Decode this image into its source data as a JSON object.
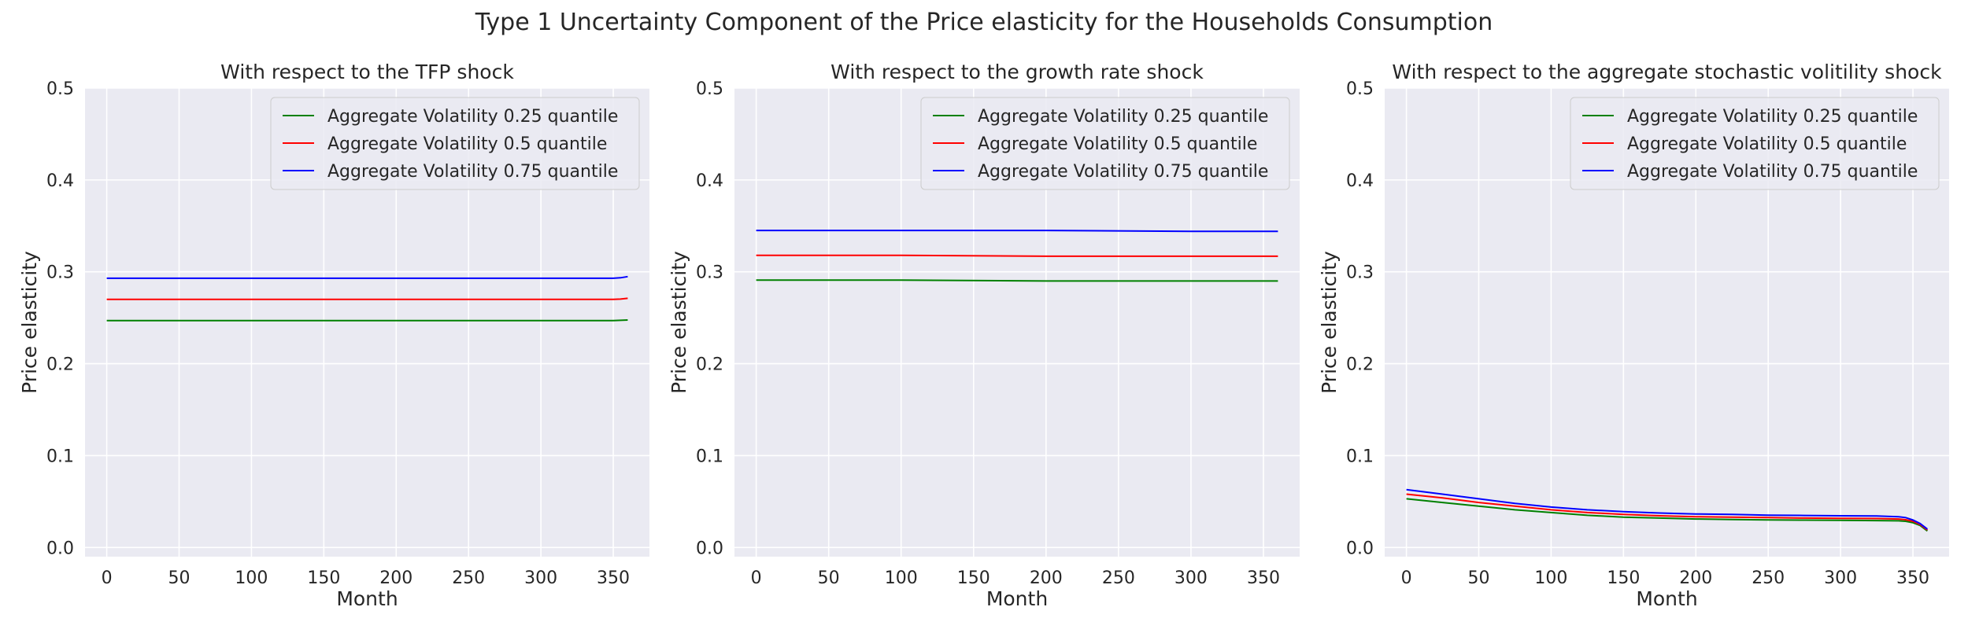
{
  "figure": {
    "title": "Type 1 Uncertainty Component of the Price elasticity for the Households Consumption"
  },
  "chart_data": [
    {
      "type": "line",
      "title": "With respect to the TFP shock",
      "xlabel": "Month",
      "ylabel": "Price elasticity",
      "xlim": [
        -15,
        375
      ],
      "ylim": [
        -0.01,
        0.5
      ],
      "xticks": [
        0,
        50,
        100,
        150,
        200,
        250,
        300,
        350
      ],
      "yticks": [
        0.0,
        0.1,
        0.2,
        0.3,
        0.4,
        0.5
      ],
      "grid": true,
      "legend_position": "upper right",
      "series": [
        {
          "name": "Aggregate Volatility 0.25 quantile",
          "color": "#008000",
          "x": [
            0,
            50,
            100,
            150,
            200,
            250,
            300,
            340,
            350,
            355,
            360
          ],
          "y": [
            0.247,
            0.247,
            0.247,
            0.247,
            0.247,
            0.247,
            0.247,
            0.247,
            0.247,
            0.2472,
            0.2476
          ]
        },
        {
          "name": "Aggregate Volatility 0.5 quantile",
          "color": "#ff0000",
          "x": [
            0,
            50,
            100,
            150,
            200,
            250,
            300,
            340,
            350,
            355,
            360
          ],
          "y": [
            0.27,
            0.27,
            0.27,
            0.27,
            0.27,
            0.27,
            0.27,
            0.27,
            0.27,
            0.2703,
            0.2712
          ]
        },
        {
          "name": "Aggregate Volatility 0.75 quantile",
          "color": "#0000ff",
          "x": [
            0,
            50,
            100,
            150,
            200,
            250,
            300,
            340,
            350,
            355,
            360
          ],
          "y": [
            0.293,
            0.293,
            0.293,
            0.293,
            0.293,
            0.293,
            0.293,
            0.293,
            0.293,
            0.2935,
            0.2948
          ]
        }
      ]
    },
    {
      "type": "line",
      "title": "With respect to the growth rate shock",
      "xlabel": "Month",
      "ylabel": "Price elasticity",
      "xlim": [
        -15,
        375
      ],
      "ylim": [
        -0.01,
        0.5
      ],
      "xticks": [
        0,
        50,
        100,
        150,
        200,
        250,
        300,
        350
      ],
      "yticks": [
        0.0,
        0.1,
        0.2,
        0.3,
        0.4,
        0.5
      ],
      "grid": true,
      "legend_position": "upper right",
      "series": [
        {
          "name": "Aggregate Volatility 0.25 quantile",
          "color": "#008000",
          "x": [
            0,
            100,
            200,
            300,
            360
          ],
          "y": [
            0.291,
            0.291,
            0.29,
            0.29,
            0.29
          ]
        },
        {
          "name": "Aggregate Volatility 0.5 quantile",
          "color": "#ff0000",
          "x": [
            0,
            100,
            200,
            300,
            360
          ],
          "y": [
            0.318,
            0.318,
            0.317,
            0.317,
            0.317
          ]
        },
        {
          "name": "Aggregate Volatility 0.75 quantile",
          "color": "#0000ff",
          "x": [
            0,
            100,
            200,
            300,
            360
          ],
          "y": [
            0.345,
            0.345,
            0.345,
            0.344,
            0.344
          ]
        }
      ]
    },
    {
      "type": "line",
      "title": "With respect to the aggregate stochastic volitility shock",
      "xlabel": "Month",
      "ylabel": "Price elasticity",
      "xlim": [
        -15,
        375
      ],
      "ylim": [
        -0.01,
        0.5
      ],
      "xticks": [
        0,
        50,
        100,
        150,
        200,
        250,
        300,
        350
      ],
      "yticks": [
        0.0,
        0.1,
        0.2,
        0.3,
        0.4,
        0.5
      ],
      "grid": true,
      "legend_position": "upper right",
      "series": [
        {
          "name": "Aggregate Volatility 0.25 quantile",
          "color": "#008000",
          "x": [
            0,
            25,
            50,
            75,
            100,
            125,
            150,
            175,
            200,
            225,
            250,
            275,
            300,
            325,
            340,
            345,
            350,
            355,
            360
          ],
          "y": [
            0.053,
            0.049,
            0.045,
            0.041,
            0.038,
            0.035,
            0.033,
            0.032,
            0.031,
            0.0305,
            0.03,
            0.0298,
            0.0295,
            0.0293,
            0.029,
            0.0285,
            0.027,
            0.024,
            0.018
          ]
        },
        {
          "name": "Aggregate Volatility 0.5 quantile",
          "color": "#ff0000",
          "x": [
            0,
            25,
            50,
            75,
            100,
            125,
            150,
            175,
            200,
            225,
            250,
            275,
            300,
            325,
            340,
            345,
            350,
            355,
            360
          ],
          "y": [
            0.058,
            0.054,
            0.049,
            0.045,
            0.041,
            0.038,
            0.036,
            0.0345,
            0.0335,
            0.033,
            0.0325,
            0.032,
            0.0318,
            0.0315,
            0.031,
            0.0302,
            0.0285,
            0.025,
            0.019
          ]
        },
        {
          "name": "Aggregate Volatility 0.75 quantile",
          "color": "#0000ff",
          "x": [
            0,
            25,
            50,
            75,
            100,
            125,
            150,
            175,
            200,
            225,
            250,
            275,
            300,
            325,
            340,
            345,
            350,
            355,
            360
          ],
          "y": [
            0.063,
            0.058,
            0.053,
            0.048,
            0.044,
            0.041,
            0.039,
            0.0375,
            0.0365,
            0.036,
            0.0352,
            0.0348,
            0.0345,
            0.0342,
            0.0335,
            0.0325,
            0.03,
            0.026,
            0.02
          ]
        }
      ]
    }
  ]
}
